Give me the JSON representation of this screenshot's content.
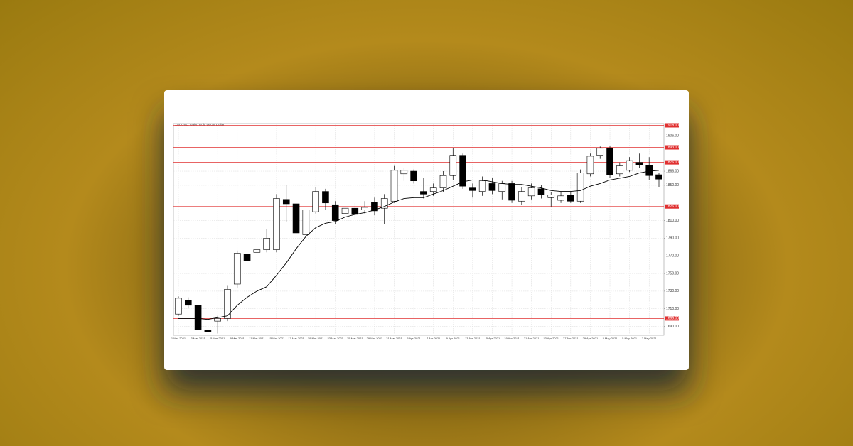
{
  "chart_data": {
    "type": "candlestick",
    "title": "XAUUSD, Daily: Gold vs US Dollar",
    "categories": [
      "1 Mar 2021",
      null,
      "3 Mar 2021",
      null,
      "5 Mar 2021",
      null,
      "9 Mar 2021",
      null,
      "11 Mar 2021",
      null,
      "15 Mar 2021",
      null,
      "17 Mar 2021",
      null,
      "19 Mar 2021",
      null,
      "23 Mar 2021",
      null,
      "25 Mar 2021",
      null,
      "29 Mar 2021",
      null,
      "31 Mar 2021",
      null,
      "5 Apr 2021",
      null,
      "7 Apr 2021",
      null,
      "9 Apr 2021",
      null,
      "13 Apr 2021",
      null,
      "15 Apr 2021",
      null,
      "19 Apr 2021",
      null,
      "21 Apr 2021",
      null,
      "23 Apr 2021",
      null,
      "27 Apr 2021",
      null,
      "29 Apr 2021",
      null,
      "3 May 2021",
      null,
      "5 May 2021",
      null,
      "7 May 2021",
      null
    ],
    "open": [
      1704,
      1720,
      1714,
      1686,
      1696,
      1699,
      1738,
      1772,
      1774,
      1777,
      1777,
      1834,
      1829,
      1794,
      1820,
      1843,
      1828,
      1818,
      1824,
      1822,
      1831,
      1824,
      1832,
      1863,
      1866,
      1843,
      1843,
      1847,
      1861,
      1884,
      1847,
      1843,
      1852,
      1843,
      1852,
      1832,
      1838,
      1846,
      1836,
      1833,
      1839,
      1832,
      1863,
      1884,
      1892,
      1863,
      1867,
      1876,
      1873,
      1862
    ],
    "high": [
      1724,
      1723,
      1716,
      1690,
      1702,
      1736,
      1776,
      1775,
      1782,
      1800,
      1840,
      1850,
      1832,
      1825,
      1848,
      1846,
      1832,
      1828,
      1830,
      1832,
      1836,
      1840,
      1872,
      1870,
      1868,
      1858,
      1852,
      1866,
      1892,
      1886,
      1852,
      1860,
      1858,
      1855,
      1855,
      1848,
      1852,
      1850,
      1842,
      1842,
      1843,
      1868,
      1886,
      1894,
      1895,
      1876,
      1882,
      1886,
      1882,
      1864
    ],
    "low": [
      1702,
      1711,
      1684,
      1681,
      1682,
      1696,
      1734,
      1750,
      1770,
      1774,
      1774,
      1808,
      1794,
      1792,
      1818,
      1822,
      1806,
      1808,
      1812,
      1818,
      1816,
      1806,
      1830,
      1855,
      1852,
      1835,
      1838,
      1842,
      1856,
      1846,
      1836,
      1838,
      1840,
      1834,
      1830,
      1828,
      1834,
      1835,
      1826,
      1830,
      1830,
      1830,
      1860,
      1880,
      1858,
      1860,
      1865,
      1870,
      1856,
      1848
    ],
    "close": [
      1722,
      1714,
      1686,
      1684,
      1699,
      1732,
      1773,
      1764,
      1777,
      1790,
      1835,
      1829,
      1796,
      1822,
      1843,
      1830,
      1810,
      1824,
      1817,
      1825,
      1821,
      1835,
      1867,
      1867,
      1855,
      1840,
      1847,
      1861,
      1884,
      1849,
      1844,
      1855,
      1844,
      1852,
      1833,
      1843,
      1847,
      1839,
      1839,
      1838,
      1832,
      1864,
      1883,
      1892,
      1862,
      1872,
      1878,
      1873,
      1861,
      1857
    ],
    "series": [
      {
        "color": "#000000",
        "values": [
          1699,
          1699,
          1699,
          1698,
          1700,
          1702,
          1714,
          1723,
          1730,
          1735,
          1748,
          1762,
          1778,
          1792,
          1802,
          1807,
          1809,
          1814,
          1817,
          1819,
          1822,
          1826,
          1831,
          1835,
          1836,
          1836,
          1840,
          1844,
          1849,
          1854,
          1856,
          1856,
          1854,
          1852,
          1851,
          1851,
          1849,
          1847,
          1844,
          1843,
          1843,
          1844,
          1849,
          1852,
          1856,
          1858,
          1860,
          1864,
          1866,
          1867
        ]
      }
    ],
    "levels": [
      {
        "value": 1918,
        "label": "1918.00"
      },
      {
        "value": 1893,
        "label": "1893.00"
      },
      {
        "value": 1876,
        "label": "1876.00"
      },
      {
        "value": 1826,
        "label": "1826.00"
      },
      {
        "value": 1699,
        "label": "1699.00"
      }
    ],
    "level_color": "#e03030",
    "ylim": [
      1680,
      1920
    ],
    "yticks": [
      {
        "value": 1690,
        "label": "1690.00"
      },
      {
        "value": 1710,
        "label": "1710.00"
      },
      {
        "value": 1730,
        "label": "1730.00"
      },
      {
        "value": 1750,
        "label": "1750.00"
      },
      {
        "value": 1770,
        "label": "1770.00"
      },
      {
        "value": 1790,
        "label": "1790.00"
      },
      {
        "value": 1810,
        "label": "1810.00"
      },
      {
        "value": 1850,
        "label": "1850.00"
      },
      {
        "value": 1866,
        "label": "1866.00"
      },
      {
        "value": 1906,
        "label": "1906.00"
      }
    ],
    "grid": true
  }
}
